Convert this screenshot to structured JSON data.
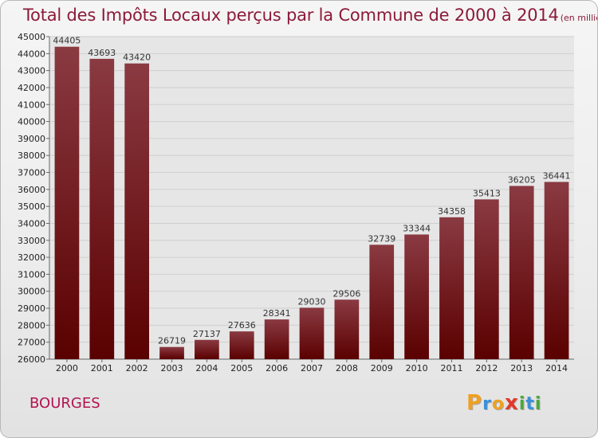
{
  "chart_data": {
    "type": "bar",
    "title": "Total des Impôts Locaux perçus par la Commune de 2000 à 2014",
    "unit_note": "(en milliers d'€)",
    "xlabel": "",
    "ylabel": "",
    "categories": [
      "2000",
      "2001",
      "2002",
      "2003",
      "2004",
      "2005",
      "2006",
      "2007",
      "2008",
      "2009",
      "2010",
      "2011",
      "2012",
      "2013",
      "2014"
    ],
    "values": [
      44405,
      43693,
      43420,
      26719,
      27137,
      27636,
      28341,
      29030,
      29506,
      32739,
      33344,
      34358,
      35413,
      36205,
      36441
    ],
    "ylim": [
      26000,
      45000
    ],
    "yticks": [
      26000,
      27000,
      28000,
      29000,
      30000,
      31000,
      32000,
      33000,
      34000,
      35000,
      36000,
      37000,
      38000,
      39000,
      40000,
      41000,
      42000,
      43000,
      44000,
      45000
    ],
    "grid": true,
    "legend": "none",
    "colors": {
      "bar_top": "#8a3a42",
      "bar_bottom": "#5a0000",
      "title": "#8c1a3a",
      "commune": "#b3134f"
    }
  },
  "commune": "BOURGES",
  "logo": {
    "text": "Proxiti",
    "letters": [
      "P",
      "r",
      "o",
      "x",
      "i",
      "t",
      "i"
    ],
    "colors": [
      "#f0a020",
      "#3a8fd8",
      "#f0a020",
      "#e03a2a",
      "#4aa83a",
      "#3a8fd8",
      "#4aa83a"
    ]
  }
}
